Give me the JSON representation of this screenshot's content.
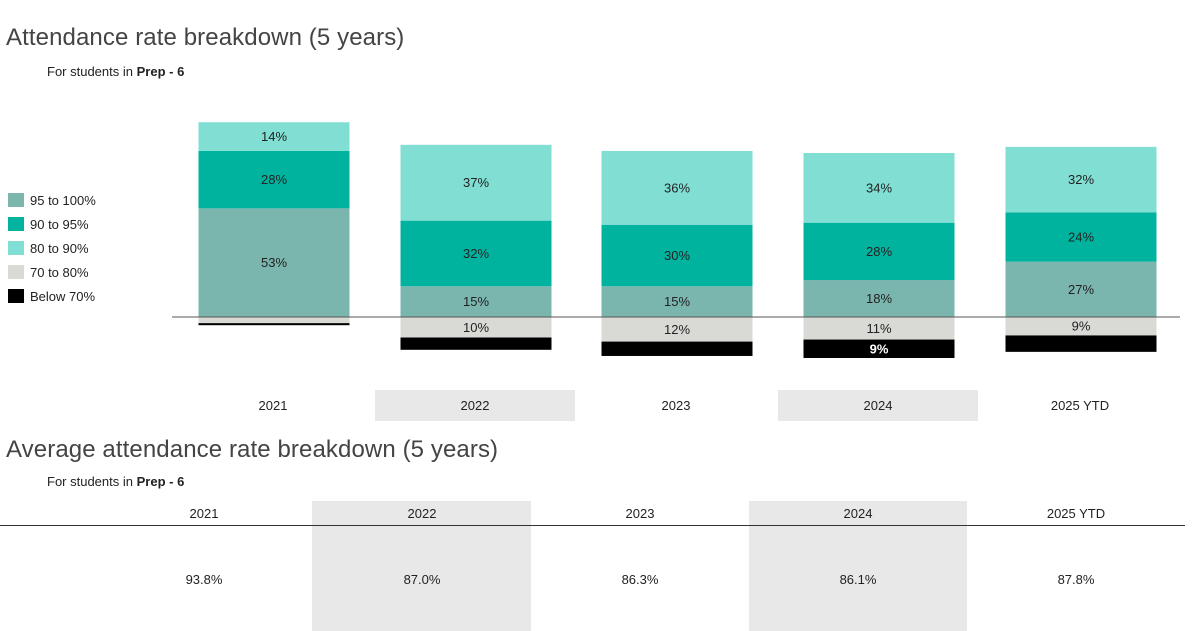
{
  "chart_title": "Attendance rate breakdown (5 years)",
  "chart_subtitle_prefix": "For students in ",
  "chart_subtitle_bold": "Prep - 6",
  "table_title": "Average attendance rate breakdown (5 years)",
  "table_subtitle_prefix": "For students in ",
  "table_subtitle_bold": "Prep - 6",
  "chart_data": {
    "type": "bar",
    "stacked": true,
    "diverging": true,
    "categories": [
      "2021",
      "2022",
      "2023",
      "2024",
      "2025 YTD"
    ],
    "series": [
      {
        "name": "95 to 100%",
        "color": "#7ab5ae",
        "above": true,
        "values": [
          53,
          15,
          15,
          18,
          27
        ],
        "labels": [
          "53%",
          "15%",
          "15%",
          "18%",
          "27%"
        ]
      },
      {
        "name": "90 to 95%",
        "color": "#00b39f",
        "above": true,
        "values": [
          28,
          32,
          30,
          28,
          24
        ],
        "labels": [
          "28%",
          "32%",
          "30%",
          "28%",
          "24%"
        ]
      },
      {
        "name": "80 to 90%",
        "color": "#80ded3",
        "above": true,
        "values": [
          14,
          37,
          36,
          34,
          32
        ],
        "labels": [
          "14%",
          "37%",
          "36%",
          "34%",
          "32%"
        ]
      },
      {
        "name": "70 to 80%",
        "color": "#d9d9d6",
        "above": false,
        "values": [
          3,
          10,
          12,
          11,
          9
        ],
        "labels": [
          "",
          "10%",
          "12%",
          "11%",
          "9%"
        ]
      },
      {
        "name": "Below 70%",
        "color": "#000000",
        "above": false,
        "values": [
          1,
          6,
          7,
          9,
          8
        ],
        "labels": [
          "",
          "",
          "",
          "9%",
          ""
        ]
      }
    ],
    "legend_position": "left"
  },
  "average_table": {
    "years": [
      "2021",
      "2022",
      "2023",
      "2024",
      "2025 YTD"
    ],
    "rates": [
      "93.8%",
      "87.0%",
      "86.3%",
      "86.1%",
      "87.8%"
    ]
  }
}
